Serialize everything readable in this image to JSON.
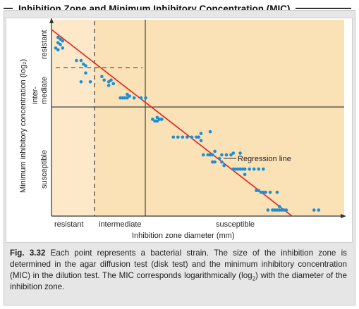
{
  "figure": {
    "title": "Inhibition Zone and Minimum Inhibitory Concentration (MIC)",
    "caption": {
      "label": "Fig. 3.32",
      "text_a": "Each point represents a bacterial strain. The size of the inhibition zone is determined in the agar diffusion test (disk test) and the minimum inhibitory concentration (MIC) in the dilution test. The MIC corresponds logarithmically (log",
      "text_sub": "2",
      "text_b": ") with the diameter of the inhibition zone."
    }
  },
  "chart_data": {
    "type": "scatter",
    "xlabel": "Inhibition zone diameter (mm)",
    "ylabel": "Minimum inhibitory concentration (log₂)",
    "x_categories": [
      "resistant",
      "intermediate",
      "susceptible"
    ],
    "y_categories": [
      "resistant",
      "inter-mediate",
      "susceptible"
    ],
    "annotation": "Regression line",
    "colors": {
      "background_resistant_zone": "#fde9c9",
      "background_main": "#fbe1b6",
      "points": "#1a8fd8",
      "regression_line": "#e0221e"
    },
    "regression_line": {
      "x": [
        0.0,
        1.0
      ],
      "y": [
        0.0,
        1.0
      ]
    },
    "points": [
      [
        0.01,
        0.02
      ],
      [
        0.02,
        0.03
      ],
      [
        0.01,
        0.05
      ],
      [
        0.03,
        0.04
      ],
      [
        0.02,
        0.06
      ],
      [
        0.0,
        0.08
      ],
      [
        0.03,
        0.08
      ],
      [
        0.01,
        0.09
      ],
      [
        0.09,
        0.15
      ],
      [
        0.11,
        0.15
      ],
      [
        0.12,
        0.17
      ],
      [
        0.13,
        0.18
      ],
      [
        0.13,
        0.22
      ],
      [
        0.11,
        0.27
      ],
      [
        0.15,
        0.27
      ],
      [
        0.2,
        0.24
      ],
      [
        0.21,
        0.26
      ],
      [
        0.23,
        0.27
      ],
      [
        0.24,
        0.26
      ],
      [
        0.25,
        0.28
      ],
      [
        0.23,
        0.29
      ],
      [
        0.28,
        0.36
      ],
      [
        0.29,
        0.36
      ],
      [
        0.3,
        0.36
      ],
      [
        0.31,
        0.36
      ],
      [
        0.32,
        0.35
      ],
      [
        0.31,
        0.34
      ],
      [
        0.34,
        0.36
      ],
      [
        0.37,
        0.36
      ],
      [
        0.39,
        0.36
      ],
      [
        0.42,
        0.48
      ],
      [
        0.43,
        0.49
      ],
      [
        0.44,
        0.49
      ],
      [
        0.45,
        0.48
      ],
      [
        0.46,
        0.48
      ],
      [
        0.44,
        0.47
      ],
      [
        0.51,
        0.58
      ],
      [
        0.53,
        0.58
      ],
      [
        0.55,
        0.58
      ],
      [
        0.57,
        0.58
      ],
      [
        0.59,
        0.58
      ],
      [
        0.61,
        0.58
      ],
      [
        0.62,
        0.58
      ],
      [
        0.63,
        0.6
      ],
      [
        0.63,
        0.56
      ],
      [
        0.67,
        0.55
      ],
      [
        0.64,
        0.68
      ],
      [
        0.66,
        0.68
      ],
      [
        0.67,
        0.68
      ],
      [
        0.68,
        0.68
      ],
      [
        0.69,
        0.66
      ],
      [
        0.71,
        0.7
      ],
      [
        0.72,
        0.68
      ],
      [
        0.74,
        0.68
      ],
      [
        0.76,
        0.68
      ],
      [
        0.77,
        0.67
      ],
      [
        0.8,
        0.67
      ],
      [
        0.68,
        0.72
      ],
      [
        0.69,
        0.72
      ],
      [
        0.72,
        0.72
      ],
      [
        0.73,
        0.74
      ],
      [
        0.77,
        0.76
      ],
      [
        0.78,
        0.76
      ],
      [
        0.79,
        0.76
      ],
      [
        0.8,
        0.76
      ],
      [
        0.81,
        0.76
      ],
      [
        0.82,
        0.76
      ],
      [
        0.84,
        0.76
      ],
      [
        0.86,
        0.76
      ],
      [
        0.88,
        0.76
      ],
      [
        0.9,
        0.76
      ],
      [
        0.82,
        0.79
      ],
      [
        0.87,
        0.88
      ],
      [
        0.88,
        0.88
      ],
      [
        0.89,
        0.89
      ],
      [
        0.9,
        0.89
      ],
      [
        0.91,
        0.89
      ],
      [
        0.93,
        0.89
      ],
      [
        0.96,
        0.89
      ],
      [
        0.92,
        0.99
      ],
      [
        0.94,
        0.99
      ],
      [
        0.95,
        0.99
      ],
      [
        0.96,
        0.99
      ],
      [
        0.97,
        0.99
      ],
      [
        0.98,
        0.99
      ],
      [
        0.99,
        0.99
      ],
      [
        1.0,
        0.99
      ],
      [
        0.97,
        0.97
      ],
      [
        1.12,
        0.99
      ],
      [
        1.14,
        0.99
      ]
    ]
  }
}
